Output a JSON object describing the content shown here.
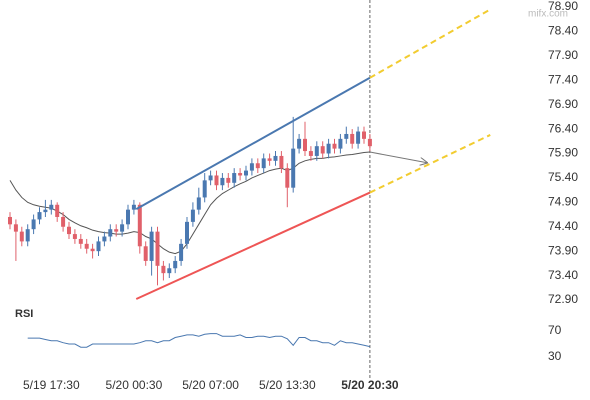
{
  "chart_data": [
    {
      "type": "candlestick",
      "watermark": "mifx.com",
      "categories": [
        null,
        null,
        null,
        null,
        null,
        null,
        null,
        "5/19 17:30",
        null,
        null,
        null,
        null,
        null,
        null,
        null,
        null,
        null,
        null,
        null,
        null,
        null,
        "5/20 00:30",
        null,
        null,
        null,
        null,
        null,
        null,
        null,
        null,
        null,
        null,
        null,
        null,
        "5/20 07:00",
        null,
        null,
        null,
        null,
        null,
        null,
        null,
        null,
        null,
        null,
        null,
        null,
        "5/20 13:30",
        null,
        null,
        null,
        null,
        null,
        null,
        null,
        null,
        null,
        null,
        null,
        null,
        null,
        "5/20 20:30"
      ],
      "bold_category": 61,
      "open": [
        74.6,
        74.45,
        74.3,
        74.1,
        74.35,
        74.55,
        74.7,
        74.75,
        74.85,
        74.6,
        74.4,
        74.25,
        74.15,
        74.05,
        73.95,
        73.9,
        74.1,
        74.2,
        74.35,
        74.3,
        74.45,
        74.75,
        74.85,
        74.0,
        73.7,
        74.3,
        73.6,
        73.45,
        73.55,
        73.7,
        74.05,
        74.5,
        74.75,
        75.0,
        75.35,
        75.45,
        75.25,
        75.4,
        75.3,
        75.5,
        75.45,
        75.55,
        75.7,
        75.6,
        75.8,
        75.75,
        75.85,
        75.6,
        75.2,
        76.0,
        76.2,
        75.95,
        75.85,
        76.05,
        75.9,
        76.1,
        76.0,
        76.2,
        76.3,
        76.1,
        76.35,
        76.2
      ],
      "high": [
        74.7,
        74.55,
        74.4,
        74.45,
        74.65,
        74.8,
        74.95,
        74.95,
        74.9,
        74.7,
        74.5,
        74.35,
        74.25,
        74.15,
        74.05,
        74.2,
        74.3,
        74.45,
        74.45,
        74.55,
        74.85,
        74.95,
        74.9,
        74.1,
        74.4,
        74.4,
        73.7,
        73.65,
        73.8,
        74.15,
        74.6,
        74.9,
        75.2,
        75.5,
        75.55,
        75.55,
        75.5,
        75.5,
        75.6,
        75.6,
        75.65,
        75.8,
        75.8,
        75.9,
        75.9,
        75.95,
        75.95,
        75.7,
        76.65,
        76.3,
        76.55,
        76.05,
        76.15,
        76.15,
        76.2,
        76.2,
        76.3,
        76.45,
        76.4,
        76.45,
        76.45,
        76.3
      ],
      "low": [
        74.35,
        73.7,
        74.0,
        74.0,
        74.25,
        74.45,
        74.6,
        74.65,
        74.5,
        74.3,
        74.15,
        74.05,
        73.95,
        73.85,
        73.75,
        73.8,
        74.0,
        74.1,
        74.2,
        74.2,
        74.35,
        74.65,
        73.85,
        73.6,
        73.4,
        73.2,
        73.3,
        73.35,
        73.45,
        73.6,
        73.95,
        74.4,
        74.65,
        74.9,
        75.25,
        75.15,
        75.15,
        75.2,
        75.2,
        75.35,
        75.35,
        75.45,
        75.5,
        75.5,
        75.65,
        75.65,
        75.5,
        74.8,
        75.1,
        75.9,
        75.85,
        75.75,
        75.75,
        75.8,
        75.8,
        75.9,
        75.9,
        76.1,
        76.0,
        76.0,
        76.1,
        75.95
      ],
      "close": [
        74.45,
        74.3,
        74.1,
        74.35,
        74.55,
        74.7,
        74.75,
        74.85,
        74.6,
        74.4,
        74.25,
        74.15,
        74.05,
        73.95,
        73.9,
        74.1,
        74.2,
        74.35,
        74.3,
        74.45,
        74.75,
        74.85,
        74.0,
        73.7,
        74.3,
        73.6,
        73.45,
        73.55,
        73.7,
        74.05,
        74.5,
        74.75,
        75.0,
        75.35,
        75.45,
        75.25,
        75.4,
        75.3,
        75.5,
        75.45,
        75.55,
        75.7,
        75.6,
        75.8,
        75.75,
        75.85,
        75.6,
        75.2,
        76.0,
        76.2,
        75.95,
        75.85,
        76.05,
        75.9,
        76.1,
        76.0,
        76.2,
        76.3,
        76.1,
        76.35,
        76.2,
        76.05
      ],
      "up_color": "#4a78b0",
      "down_color": "#e0606a",
      "series": [
        {
          "color": "#555555",
          "values": [
            75.35,
            75.15,
            75.0,
            74.9,
            74.85,
            74.82,
            74.8,
            74.78,
            74.72,
            74.65,
            74.55,
            74.48,
            74.42,
            74.38,
            74.33,
            74.3,
            74.28,
            74.27,
            74.25,
            74.25,
            74.27,
            74.3,
            74.28,
            74.2,
            74.15,
            74.05,
            73.95,
            73.88,
            73.85,
            73.9,
            74.05,
            74.25,
            74.45,
            74.65,
            74.85,
            74.98,
            75.08,
            75.15,
            75.22,
            75.28,
            75.33,
            75.4,
            75.45,
            75.5,
            75.55,
            75.58,
            75.6,
            75.55,
            75.6,
            75.7,
            75.75,
            75.78,
            75.8,
            75.8,
            75.82,
            75.83,
            75.85,
            75.87,
            75.88,
            75.9,
            75.92,
            75.93
          ]
        }
      ],
      "trend_lines": [
        {
          "color": "#4a78b0",
          "x": [
            21.4,
            61
          ],
          "y": [
            74.76,
            77.45
          ]
        },
        {
          "color": "#ee5555",
          "x": [
            21.4,
            61
          ],
          "y": [
            72.92,
            75.1
          ]
        },
        {
          "color": "#f2cc30",
          "dashed": true,
          "x": [
            61,
            81.4
          ],
          "y": [
            77.45,
            78.85
          ]
        },
        {
          "color": "#f2cc30",
          "dashed": true,
          "x": [
            61,
            81.4
          ],
          "y": [
            75.1,
            76.28
          ]
        },
        {
          "color": "#777777",
          "arrow": true,
          "x": [
            61,
            70.7
          ],
          "y": [
            75.93,
            75.71
          ]
        }
      ],
      "ylim": [
        72.9,
        78.9
      ],
      "yticks": [
        {
          "value": 78.9,
          "label": "78.90"
        },
        {
          "value": 78.4,
          "label": "78.40"
        },
        {
          "value": 77.9,
          "label": "77.90"
        },
        {
          "value": 77.4,
          "label": "77.40"
        },
        {
          "value": 76.9,
          "label": "76.90"
        },
        {
          "value": 76.4,
          "label": "76.40"
        },
        {
          "value": 75.9,
          "label": "75.90"
        },
        {
          "value": 75.4,
          "label": "75.40"
        },
        {
          "value": 74.9,
          "label": "74.90"
        },
        {
          "value": 74.4,
          "label": "74.40"
        },
        {
          "value": 73.9,
          "label": "73.90"
        },
        {
          "value": 73.4,
          "label": "73.40"
        },
        {
          "value": 72.9,
          "label": "72.90"
        }
      ]
    },
    {
      "type": "line",
      "title": "RSI",
      "color": "#4a78b0",
      "values": [
        null,
        null,
        null,
        59,
        59,
        59,
        57,
        55,
        55,
        52,
        50,
        50,
        45,
        45,
        50,
        50,
        50,
        50,
        50,
        50,
        50,
        50,
        52,
        55,
        55,
        52,
        55,
        55,
        60,
        62,
        64,
        64,
        62,
        65,
        66,
        66,
        62,
        62,
        62,
        64,
        60,
        60,
        62,
        62,
        60,
        62,
        62,
        58,
        48,
        60,
        60,
        55,
        55,
        52,
        52,
        48,
        55,
        52,
        52,
        50,
        48,
        46
      ],
      "ylim": [
        20,
        100
      ],
      "yticks": [
        70,
        30
      ]
    }
  ]
}
